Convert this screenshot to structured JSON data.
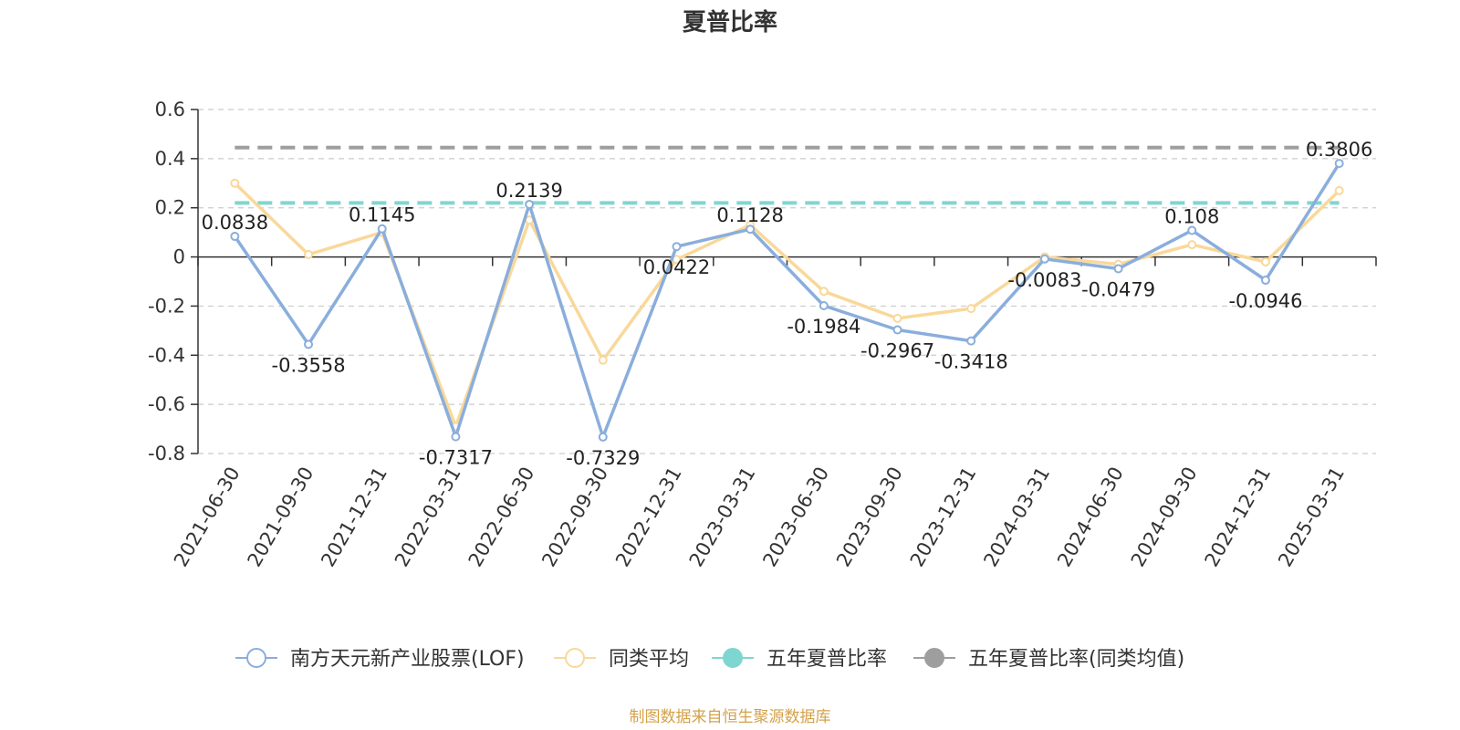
{
  "chart_data": {
    "type": "line",
    "title": "夏普比率",
    "categories": [
      "2021-06-30",
      "2021-09-30",
      "2021-12-31",
      "2022-03-31",
      "2022-06-30",
      "2022-09-30",
      "2022-12-31",
      "2023-03-31",
      "2023-06-30",
      "2023-09-30",
      "2023-12-31",
      "2024-03-31",
      "2024-06-30",
      "2024-09-30",
      "2024-12-31",
      "2025-03-31"
    ],
    "ylim": [
      -0.8,
      0.6
    ],
    "yticks": [
      0.6,
      0.4,
      0.2,
      0,
      -0.2,
      -0.4,
      -0.6,
      -0.8
    ],
    "ytick_labels": [
      "0.6",
      "0.4",
      "0.2",
      "0",
      "-0.2",
      "-0.4",
      "-0.6",
      "-0.8"
    ],
    "grid": true,
    "legend_position": "bottom",
    "series": [
      {
        "name": "南方天元新产业股票(LOF)",
        "color": "#8aaedc",
        "values": [
          0.0838,
          -0.3558,
          0.1145,
          -0.7317,
          0.2139,
          -0.7329,
          0.0422,
          0.1128,
          -0.1984,
          -0.2967,
          -0.3418,
          -0.0083,
          -0.0479,
          0.108,
          -0.0946,
          0.3806
        ],
        "labels": [
          "0.0838",
          "-0.3558",
          "0.1145",
          "-0.7317",
          "0.2139",
          "-0.7329",
          "0.0422",
          "0.1128",
          "-0.1984",
          "-0.2967",
          "-0.3418",
          "-0.0083",
          "-0.0479",
          "0.108",
          "-0.0946",
          "0.3806"
        ]
      },
      {
        "name": "同类平均",
        "color": "#f9d89a",
        "values": [
          0.3,
          0.01,
          0.1,
          -0.69,
          0.15,
          -0.42,
          -0.01,
          0.13,
          -0.14,
          -0.25,
          -0.21,
          0.0,
          -0.03,
          0.05,
          -0.02,
          0.27
        ]
      },
      {
        "name": "五年夏普比率",
        "color": "#7fd6d0",
        "constant": 0.22
      },
      {
        "name": "五年夏普比率(同类均值)",
        "color": "#9e9e9e",
        "constant": 0.445
      }
    ]
  },
  "source_note": "制图数据来自恒生聚源数据库"
}
